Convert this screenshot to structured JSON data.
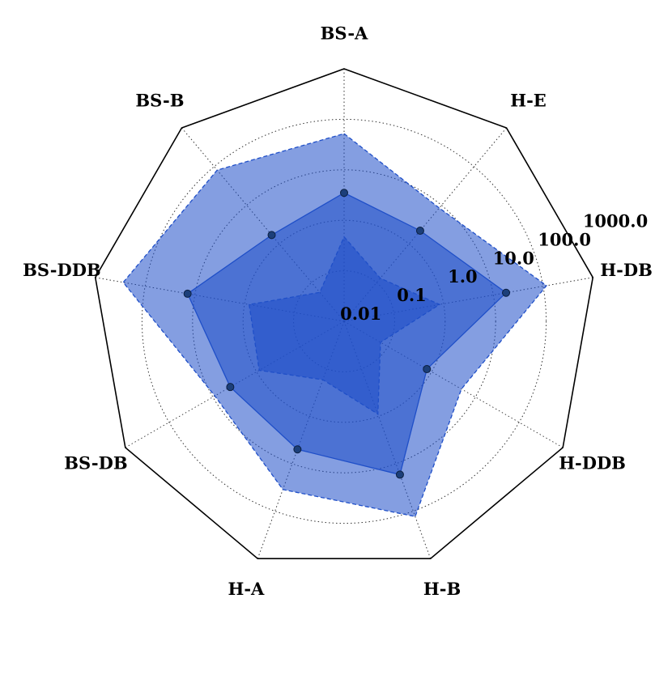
{
  "chart_data": {
    "type": "radar",
    "categories": [
      "BS-A",
      "H-E",
      "H-DB",
      "H-DDB",
      "H-B",
      "H-A",
      "BS-DB",
      "BS-DDB",
      "BS-B"
    ],
    "log_scale": true,
    "grid": true,
    "ylim": [
      0.01,
      1000
    ],
    "yticks": [
      {
        "value": 0.01,
        "label": "0.01"
      },
      {
        "value": 0.1,
        "label": "0.1"
      },
      {
        "value": 1,
        "label": "1.0"
      },
      {
        "value": 10,
        "label": "10.0"
      },
      {
        "value": 100,
        "label": "100.0"
      },
      {
        "value": 1000,
        "label": "1000.0"
      }
    ],
    "series": [
      {
        "color": "#1f4fc8",
        "line_style": "dashed",
        "markers": false,
        "values": [
          52,
          8.5,
          117,
          4.8,
          130,
          35,
          9,
          275,
          81
        ]
      },
      {
        "color": "#1f4fc8",
        "line_style": "solid",
        "markers": true,
        "values": [
          3.5,
          2.2,
          18,
          0.78,
          17,
          5,
          4,
          14,
          1.7
        ]
      },
      {
        "color": "#1f4fc8",
        "line_style": "dashed",
        "markers": false,
        "values": [
          0.47,
          0.13,
          0.83,
          0.068,
          0.9,
          0.17,
          0.87,
          0.81,
          0.056
        ]
      }
    ]
  }
}
